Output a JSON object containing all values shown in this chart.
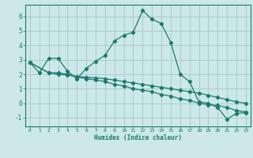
{
  "xlabel": "Humidex (Indice chaleur)",
  "bg_color": "#cce8e8",
  "grid_color": "#aacccc",
  "line_color": "#1a7a6e",
  "xlim": [
    -0.5,
    23.5
  ],
  "ylim": [
    -1.6,
    6.8
  ],
  "xticks": [
    0,
    1,
    2,
    3,
    4,
    5,
    6,
    7,
    8,
    9,
    10,
    11,
    12,
    13,
    14,
    15,
    16,
    17,
    18,
    19,
    20,
    21,
    22,
    23
  ],
  "yticks": [
    -1,
    0,
    1,
    2,
    3,
    4,
    5,
    6
  ],
  "series1_x": [
    0,
    1,
    2,
    3,
    4,
    5,
    6,
    7,
    8,
    9,
    10,
    11,
    12,
    13,
    14,
    15,
    16,
    17,
    18,
    19,
    20,
    21,
    22,
    23
  ],
  "series1_y": [
    2.8,
    2.1,
    3.1,
    3.1,
    2.2,
    1.7,
    2.4,
    2.9,
    3.3,
    4.3,
    4.7,
    4.9,
    6.4,
    5.8,
    5.5,
    4.2,
    2.0,
    1.5,
    0.1,
    0.0,
    -0.3,
    -1.1,
    -0.7,
    -0.65
  ],
  "series2_x": [
    0,
    2,
    3,
    4,
    5,
    6,
    7,
    8,
    9,
    10,
    11,
    12,
    13,
    14,
    15,
    16,
    17,
    18,
    19,
    20,
    21,
    22,
    23
  ],
  "series2_y": [
    2.8,
    2.1,
    2.1,
    2.0,
    1.8,
    1.7,
    1.6,
    1.5,
    1.3,
    1.2,
    1.0,
    0.9,
    0.8,
    0.6,
    0.5,
    0.3,
    0.2,
    0.0,
    -0.1,
    -0.15,
    -0.3,
    -0.5,
    -0.6
  ],
  "series3_x": [
    0,
    2,
    3,
    4,
    5,
    6,
    7,
    8,
    9,
    10,
    11,
    12,
    13,
    14,
    15,
    16,
    17,
    18,
    19,
    20,
    21,
    22,
    23
  ],
  "series3_y": [
    2.8,
    2.1,
    2.0,
    1.95,
    1.85,
    1.8,
    1.75,
    1.7,
    1.6,
    1.5,
    1.4,
    1.3,
    1.2,
    1.1,
    1.0,
    0.9,
    0.8,
    0.7,
    0.55,
    0.4,
    0.25,
    0.1,
    0.0
  ]
}
